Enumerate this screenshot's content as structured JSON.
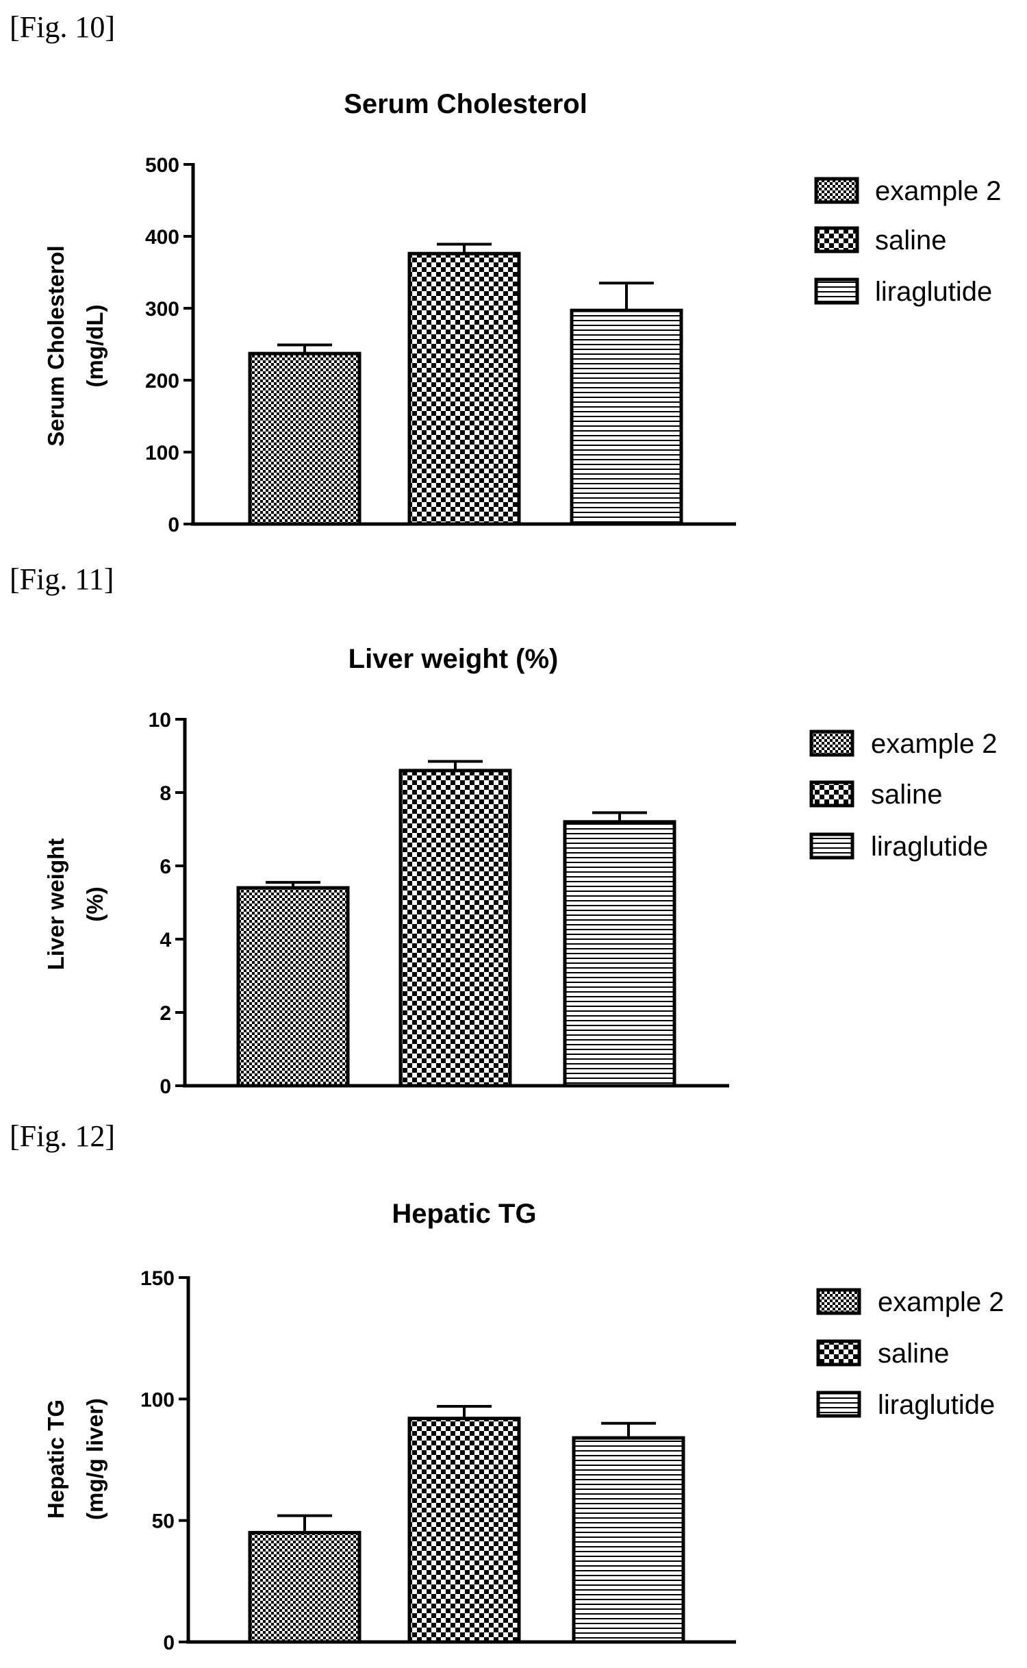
{
  "figures": [
    {
      "label": "[Fig. 10]"
    },
    {
      "label": "[Fig. 11]"
    },
    {
      "label": "[Fig. 12]"
    }
  ],
  "chart_data": [
    {
      "type": "bar",
      "title": "Serum Cholesterol",
      "ylabel_lines": [
        "Serum Cholesterol",
        "(mg/dL)"
      ],
      "xlabel": "",
      "categories": [
        "example 2",
        "saline",
        "liraglutide"
      ],
      "values": [
        237,
        376,
        297
      ],
      "errors": [
        12,
        13,
        38
      ],
      "ylim": [
        0,
        500
      ],
      "yticks": [
        0,
        100,
        200,
        300,
        400,
        500
      ],
      "patterns": [
        "fine-checker",
        "checker",
        "horizontal-lines"
      ],
      "legend": [
        "example 2",
        "saline",
        "liraglutide"
      ],
      "legend_position": "top-right",
      "grid": false
    },
    {
      "type": "bar",
      "title": "Liver weight (%)",
      "ylabel_lines": [
        "Liver weight",
        "(%)"
      ],
      "xlabel": "",
      "categories": [
        "example 2",
        "saline",
        "liraglutide"
      ],
      "values": [
        5.4,
        8.6,
        7.2
      ],
      "errors": [
        0.15,
        0.25,
        0.25
      ],
      "ylim": [
        0,
        10
      ],
      "yticks": [
        0,
        2,
        4,
        6,
        8,
        10
      ],
      "patterns": [
        "fine-checker",
        "checker",
        "horizontal-lines"
      ],
      "legend": [
        "example 2",
        "saline",
        "liraglutide"
      ],
      "legend_position": "top-right",
      "grid": false
    },
    {
      "type": "bar",
      "title": "Hepatic TG",
      "ylabel_lines": [
        "Hepatic TG",
        "(mg/g liver)"
      ],
      "xlabel": "",
      "categories": [
        "example 2",
        "saline",
        "liraglutide"
      ],
      "values": [
        45,
        92,
        84
      ],
      "errors": [
        7,
        5,
        6
      ],
      "ylim": [
        0,
        150
      ],
      "yticks": [
        0,
        50,
        100,
        150
      ],
      "patterns": [
        "fine-checker",
        "checker",
        "horizontal-lines"
      ],
      "legend": [
        "example 2",
        "saline",
        "liraglutide"
      ],
      "legend_position": "top-right",
      "grid": false
    }
  ]
}
